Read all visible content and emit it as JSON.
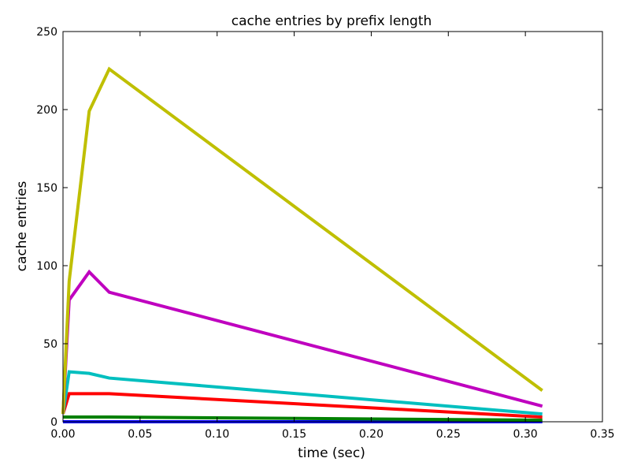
{
  "chart_data": {
    "type": "line",
    "title": "cache entries by prefix length",
    "xlabel": "time (sec)",
    "ylabel": "cache entries",
    "xlim": [
      0,
      0.35
    ],
    "ylim": [
      0,
      250
    ],
    "x_ticks": [
      0.0,
      0.05,
      0.1,
      0.15,
      0.2,
      0.25,
      0.3,
      0.35
    ],
    "x_tick_labels": [
      "0.00",
      "0.05",
      "0.10",
      "0.15",
      "0.20",
      "0.25",
      "0.30",
      "0.35"
    ],
    "y_ticks": [
      0,
      50,
      100,
      150,
      200,
      250
    ],
    "y_tick_labels": [
      "0",
      "50",
      "100",
      "150",
      "200",
      "250"
    ],
    "grid": false,
    "series": [
      {
        "color": "#0000ff",
        "x": [
          0,
          0.004,
          0.017,
          0.03,
          0.311
        ],
        "y": [
          0,
          0,
          0,
          0,
          0
        ]
      },
      {
        "color": "#008000",
        "x": [
          0,
          0.004,
          0.017,
          0.03,
          0.311
        ],
        "y": [
          3,
          3,
          3,
          3,
          1
        ]
      },
      {
        "color": "#ff0000",
        "x": [
          0,
          0.004,
          0.017,
          0.03,
          0.311
        ],
        "y": [
          5,
          18,
          18,
          18,
          3
        ]
      },
      {
        "color": "#00bfbf",
        "x": [
          0,
          0.004,
          0.017,
          0.03,
          0.311
        ],
        "y": [
          5,
          32,
          31,
          28,
          5
        ]
      },
      {
        "color": "#bf00bf",
        "x": [
          0,
          0.004,
          0.017,
          0.03,
          0.311
        ],
        "y": [
          5,
          78,
          96,
          83,
          10
        ]
      },
      {
        "color": "#bfbf00",
        "x": [
          0,
          0.004,
          0.017,
          0.03,
          0.311
        ],
        "y": [
          5,
          90,
          199,
          226,
          20
        ]
      }
    ]
  }
}
